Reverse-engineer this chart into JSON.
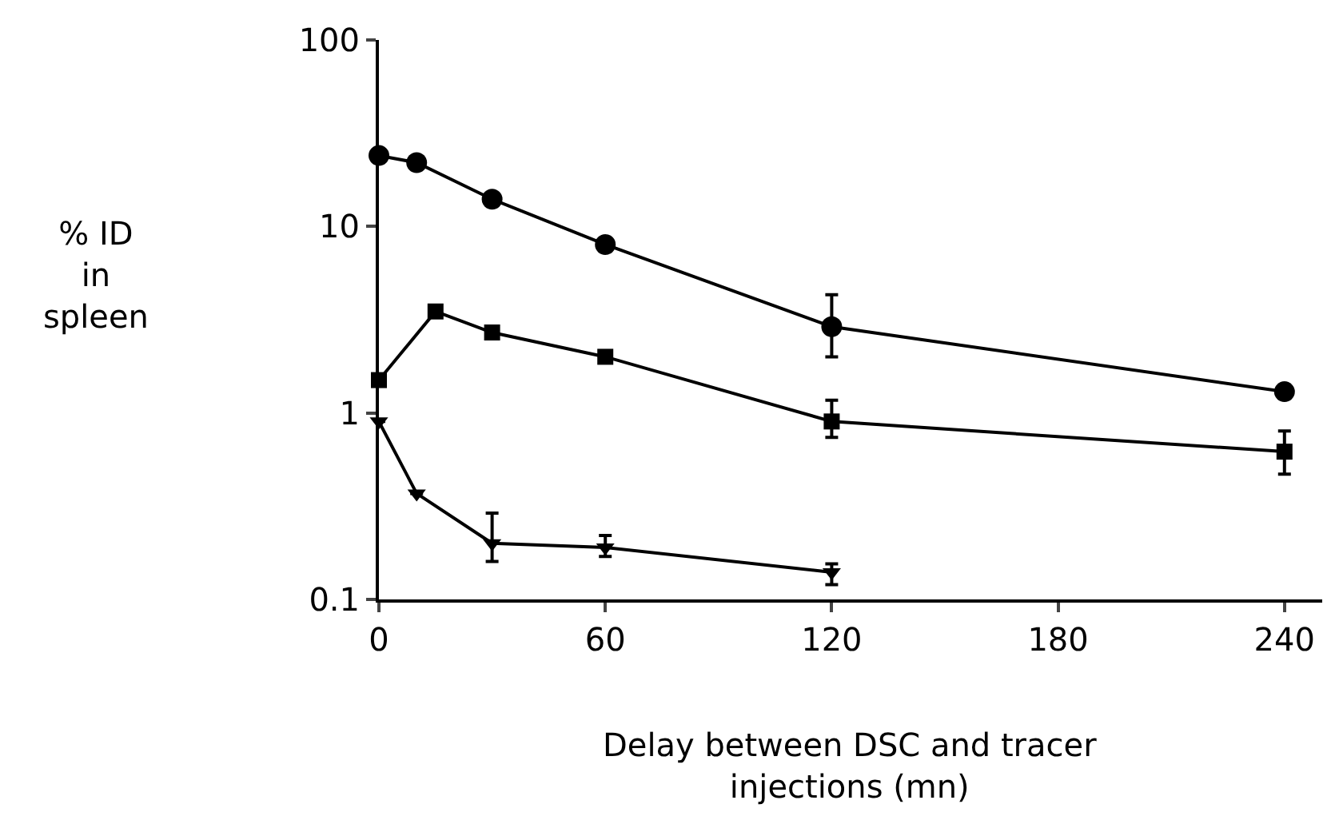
{
  "chart_data": {
    "type": "line",
    "xlabel": "Delay between DSC and tracer\ninjections (mn)",
    "ylabel": "% ID\nin\nspleen",
    "log": "y",
    "xlim": [
      0,
      250
    ],
    "xticks": [
      0,
      60,
      120,
      180,
      240
    ],
    "ylim": [
      0.1,
      100
    ],
    "yticks": [
      0.1,
      1,
      10,
      100
    ],
    "line_style": "solid",
    "series": [
      {
        "color": "#000000",
        "marker": "circle",
        "x": [
          0,
          10,
          30,
          60,
          120,
          240
        ],
        "values": [
          24,
          22,
          14,
          8.0,
          2.9,
          1.3
        ],
        "errors": [
          null,
          null,
          null,
          null,
          [
            2.0,
            4.3
          ],
          null
        ]
      },
      {
        "color": "#000000",
        "marker": "square",
        "x": [
          0,
          15,
          30,
          60,
          120,
          240
        ],
        "values": [
          1.5,
          3.5,
          2.7,
          2.0,
          0.9,
          0.62
        ],
        "errors": [
          null,
          null,
          null,
          null,
          [
            0.74,
            1.17
          ],
          [
            0.47,
            0.8
          ]
        ]
      },
      {
        "color": "#000000",
        "marker": "triangle",
        "x": [
          0,
          10,
          30,
          60,
          120
        ],
        "values": [
          0.9,
          0.37,
          0.2,
          0.19,
          0.14
        ],
        "errors": [
          null,
          null,
          [
            0.16,
            0.29
          ],
          [
            0.17,
            0.22
          ],
          [
            0.12,
            0.155
          ]
        ]
      }
    ]
  }
}
